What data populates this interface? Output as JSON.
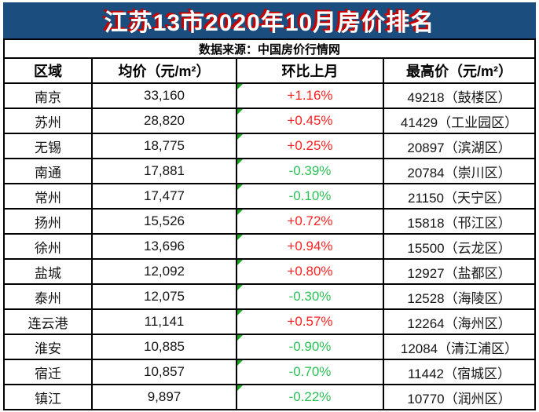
{
  "header": {
    "title": "江苏13市2020年10月房价排名",
    "source": "数据来源：中国房价行情网"
  },
  "colors": {
    "title_bar_navy": "#1b4e7e",
    "title_text": "#ffffff",
    "title_shadow_red": "#c70000",
    "positive_red": "#fd2222",
    "negative_green": "#2cc157",
    "corner_flag_green": "#1ca51c",
    "grid_border": "#000000"
  },
  "chart_data": {
    "type": "table",
    "title": "江苏13市2020年10月房价排名",
    "source": "数据来源：中国房价行情网",
    "columns": [
      "区域",
      "均价（元/m²）",
      "环比上月",
      "最高价（元/m²）"
    ],
    "rows": [
      {
        "region": "南京",
        "avg_price": "33,160",
        "mom_change": "+1.16%",
        "max_price": "49218（鼓楼区）"
      },
      {
        "region": "苏州",
        "avg_price": "28,820",
        "mom_change": "+0.45%",
        "max_price": "41429（工业园区）"
      },
      {
        "region": "无锡",
        "avg_price": "18,775",
        "mom_change": "+0.25%",
        "max_price": "20897（滨湖区）"
      },
      {
        "region": "南通",
        "avg_price": "17,881",
        "mom_change": "-0.39%",
        "max_price": "20784（崇川区）"
      },
      {
        "region": "常州",
        "avg_price": "17,477",
        "mom_change": "-0.10%",
        "max_price": "21150（天宁区）"
      },
      {
        "region": "扬州",
        "avg_price": "15,526",
        "mom_change": "+0.72%",
        "max_price": "15818（邗江区）"
      },
      {
        "region": "徐州",
        "avg_price": "13,696",
        "mom_change": "+0.94%",
        "max_price": "15500（云龙区）"
      },
      {
        "region": "盐城",
        "avg_price": "12,092",
        "mom_change": "+0.80%",
        "max_price": "12927（盐都区）"
      },
      {
        "region": "泰州",
        "avg_price": "12,075",
        "mom_change": "-0.30%",
        "max_price": "12528（海陵区）"
      },
      {
        "region": "连云港",
        "avg_price": "11,141",
        "mom_change": "+0.57%",
        "max_price": "12264（海州区）"
      },
      {
        "region": "淮安",
        "avg_price": "10,885",
        "mom_change": "-0.90%",
        "max_price": "12084（清江浦区）"
      },
      {
        "region": "宿迁",
        "avg_price": "10,857",
        "mom_change": "-0.70%",
        "max_price": "11442（宿城区）"
      },
      {
        "region": "镇江",
        "avg_price": "9,897",
        "mom_change": "-0.22%",
        "max_price": "10770（润州区）"
      }
    ]
  }
}
